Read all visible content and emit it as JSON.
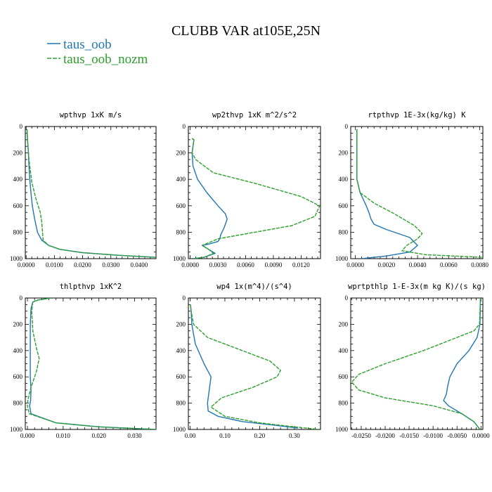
{
  "title": "CLUBB VAR at105E,25N",
  "colors": {
    "taus_oob": "#1f77b4",
    "taus_oob_nozm": "#2ca02c"
  },
  "legend": [
    {
      "key": "taus_oob",
      "name": "taus_oob",
      "dashed": false
    },
    {
      "key": "taus_oob_nozm",
      "name": "taus_oob_nozm",
      "dashed": true
    }
  ],
  "chart_data": [
    {
      "type": "line",
      "title": "wpthvp   1xK m/s",
      "xlim": [
        -0.0003,
        0.046
      ],
      "ylim": [
        1000,
        0
      ],
      "xticks": [
        "0.0000",
        "0.0100",
        "0.0200",
        "0.0300",
        "0.0400"
      ],
      "xtick_values": [
        0,
        0.01,
        0.02,
        0.03,
        0.04
      ],
      "yticks": [
        0,
        200,
        400,
        600,
        800,
        1000
      ],
      "series": [
        {
          "key": "taus_oob",
          "x": [
            0.0003,
            0.0005,
            0.0008,
            0.001,
            0.0013,
            0.0017,
            0.0022,
            0.003,
            0.004,
            0.0055,
            0.008,
            0.012,
            0.02,
            0.033,
            0.046
          ],
          "y": [
            20,
            100,
            200,
            300,
            400,
            500,
            600,
            700,
            800,
            860,
            900,
            930,
            955,
            975,
            990
          ]
        },
        {
          "key": "taus_oob_nozm",
          "x": [
            0.0003,
            0.0005,
            0.001,
            0.002,
            0.0035,
            0.005,
            0.0055,
            0.0058,
            0.006,
            0.008,
            0.012,
            0.02,
            0.033,
            0.046
          ],
          "y": [
            20,
            100,
            250,
            420,
            550,
            650,
            720,
            800,
            860,
            900,
            930,
            955,
            975,
            990
          ]
        }
      ]
    },
    {
      "type": "line",
      "title": "wp2thvp   1xK m^2/s^2",
      "xlim": [
        -0.0002,
        0.0141
      ],
      "ylim": [
        1000,
        0
      ],
      "xticks": [
        "0.0000",
        "0.0030",
        "0.0060",
        "0.0090",
        "0.0120"
      ],
      "xtick_values": [
        0,
        0.003,
        0.006,
        0.009,
        0.012
      ],
      "yticks": [
        0,
        200,
        400,
        600,
        800,
        1000
      ],
      "series": [
        {
          "key": "taus_oob",
          "x": [
            0.0002,
            0.0004,
            0.0002,
            0.0003,
            0.0008,
            0.0018,
            0.003,
            0.0038,
            0.004,
            0.0037,
            0.0033,
            0.0032,
            0.003,
            0.002,
            0.0013,
            0.002,
            0.0027,
            0.0015,
            0.0003
          ],
          "y": [
            90,
            100,
            200,
            300,
            400,
            500,
            600,
            660,
            700,
            760,
            820,
            850,
            870,
            890,
            900,
            930,
            960,
            990,
            1000
          ]
        },
        {
          "key": "taus_oob_nozm",
          "x": [
            0.0002,
            0.0004,
            0.0002,
            0.0006,
            0.0025,
            0.007,
            0.012,
            0.014,
            0.0135,
            0.011,
            0.007,
            0.003,
            0.0013,
            0.002,
            0.0025,
            0.0015,
            0.0003
          ],
          "y": [
            90,
            100,
            200,
            250,
            350,
            430,
            530,
            600,
            680,
            750,
            800,
            850,
            900,
            930,
            960,
            990,
            1000
          ]
        }
      ]
    },
    {
      "type": "line",
      "title": "rtpthvp   1E-3x(kg/kg) K",
      "xlim": [
        -0.0003,
        0.0082
      ],
      "ylim": [
        1000,
        0
      ],
      "xticks": [
        "0.0000",
        "0.0020",
        "0.0040",
        "0.0060",
        "0.0080"
      ],
      "xtick_values": [
        0,
        0.002,
        0.004,
        0.006,
        0.008
      ],
      "yticks": [
        0,
        200,
        400,
        600,
        800,
        1000
      ],
      "series": [
        {
          "key": "taus_oob",
          "x": [
            0.0001,
            0.0001,
            0.0001,
            0.0001,
            0.0003,
            0.0007,
            0.0009,
            0.001,
            0.0012,
            0.002,
            0.0035,
            0.004,
            0.0035,
            0.002,
            0.0004
          ],
          "y": [
            20,
            200,
            300,
            400,
            500,
            600,
            660,
            700,
            740,
            780,
            840,
            900,
            950,
            980,
            1000
          ]
        },
        {
          "key": "taus_oob_nozm",
          "x": [
            0.0001,
            0.0001,
            0.0001,
            0.0003,
            0.0012,
            0.0025,
            0.0038,
            0.0043,
            0.004,
            0.0033,
            0.003,
            0.0045,
            0.0082
          ],
          "y": [
            20,
            200,
            400,
            500,
            580,
            660,
            750,
            810,
            850,
            900,
            940,
            970,
            990
          ]
        }
      ]
    },
    {
      "type": "line",
      "title": "thlpthvp   1xK^2",
      "xlim": [
        -0.0006,
        0.036
      ],
      "ylim": [
        1000,
        0
      ],
      "xticks": [
        "0.000",
        "0.010",
        "0.020",
        "0.030"
      ],
      "xtick_values": [
        0,
        0.01,
        0.02,
        0.03
      ],
      "yticks": [
        0,
        200,
        400,
        600,
        800,
        1000
      ],
      "series": [
        {
          "key": "taus_oob",
          "x": [
            0.0065,
            0.003,
            0.0015,
            0.001,
            0.0008,
            0.0008,
            0.0008,
            0.0008,
            0.0008,
            0.001,
            0.0009,
            0.0006,
            0.001,
            0.008,
            0.02,
            0.036
          ],
          "y": [
            0,
            15,
            30,
            80,
            200,
            300,
            400,
            500,
            600,
            700,
            780,
            820,
            880,
            950,
            980,
            1000
          ]
        },
        {
          "key": "taus_oob_nozm",
          "x": [
            0.0065,
            0.003,
            0.0015,
            0.0012,
            0.0015,
            0.0025,
            0.0033,
            0.0025,
            0.001,
            0.0001,
            0.0,
            0.0005,
            0.008,
            0.02,
            0.036
          ],
          "y": [
            0,
            15,
            30,
            100,
            250,
            380,
            460,
            560,
            680,
            780,
            820,
            880,
            950,
            980,
            1000
          ]
        }
      ]
    },
    {
      "type": "line",
      "title": "wp4   1x(m^4)/(s^4)",
      "xlim": [
        -0.005,
        0.375
      ],
      "ylim": [
        1000,
        0
      ],
      "xticks": [
        "0.00",
        "0.10",
        "0.20",
        "0.30"
      ],
      "xtick_values": [
        0,
        0.1,
        0.2,
        0.3
      ],
      "yticks": [
        0,
        200,
        400,
        600,
        800,
        1000
      ],
      "series": [
        {
          "key": "taus_oob",
          "x": [
            0.001,
            0.003,
            0.005,
            0.015,
            0.04,
            0.06,
            0.055,
            0.05,
            0.052,
            0.08,
            0.15,
            0.25,
            0.31
          ],
          "y": [
            50,
            100,
            200,
            350,
            500,
            600,
            700,
            800,
            860,
            900,
            940,
            970,
            990
          ]
        },
        {
          "key": "taus_oob_nozm",
          "x": [
            0.001,
            0.003,
            0.01,
            0.05,
            0.15,
            0.23,
            0.26,
            0.25,
            0.18,
            0.09,
            0.06,
            0.1,
            0.2,
            0.3,
            0.37
          ],
          "y": [
            50,
            100,
            200,
            300,
            400,
            480,
            550,
            600,
            680,
            760,
            830,
            900,
            950,
            980,
            1000
          ]
        }
      ]
    },
    {
      "type": "line",
      "title": "wprtpthlp   1-E-3x(m kg K)/(s kg)",
      "xlim": [
        -0.0272,
        0.0004
      ],
      "ylim": [
        1000,
        0
      ],
      "xticks": [
        "-0.0250",
        "-0.0200",
        "-0.0150",
        "-0.0100",
        "-0.0050",
        "0.0000"
      ],
      "xtick_values": [
        -0.025,
        -0.02,
        -0.015,
        -0.01,
        -0.005,
        0
      ],
      "yticks": [
        0,
        200,
        400,
        600,
        800,
        1000
      ],
      "series": [
        {
          "key": "taus_oob",
          "x": [
            -0.0001,
            -0.0002,
            -0.0008,
            -0.0025,
            -0.005,
            -0.0065,
            -0.007,
            -0.0072,
            -0.0078,
            -0.0068,
            -0.004,
            -0.0015,
            -0.0002
          ],
          "y": [
            0,
            200,
            300,
            400,
            500,
            600,
            680,
            730,
            780,
            820,
            880,
            940,
            1000
          ]
        },
        {
          "key": "taus_oob_nozm",
          "x": [
            -0.0001,
            -0.0003,
            -0.0015,
            -0.005,
            -0.012,
            -0.02,
            -0.0255,
            -0.027,
            -0.0255,
            -0.02,
            -0.01,
            -0.004,
            -0.0015,
            -0.0002
          ],
          "y": [
            0,
            200,
            250,
            300,
            400,
            500,
            580,
            640,
            700,
            760,
            820,
            880,
            940,
            1000
          ]
        }
      ]
    }
  ]
}
